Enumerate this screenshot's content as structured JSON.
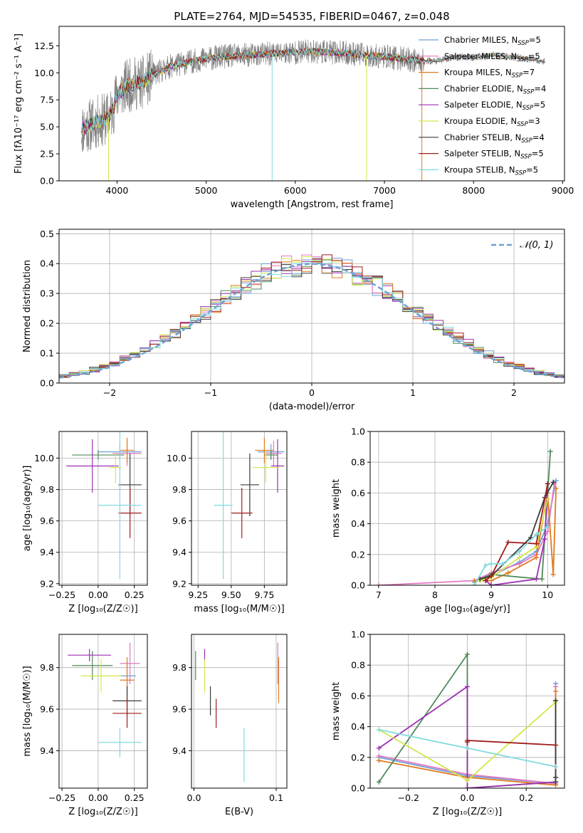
{
  "chart_data": [
    {
      "type": "line",
      "id": "spectrum",
      "title": "PLATE=2764, MJD=54535, FIBERID=0467, z=0.048",
      "xlabel": "wavelength [Angstrom, rest frame]",
      "ylabel": "Flux [fλ10⁻¹⁷ erg cm⁻² s⁻¹ A⁻¹]",
      "xlim": [
        3350,
        9020
      ],
      "ylim": [
        0,
        14.3
      ],
      "xticks": [
        4000,
        5000,
        6000,
        7000,
        8000,
        9000
      ],
      "xticklabels": [
        "4000",
        "5000",
        "6000",
        "7000",
        "8000",
        "9000"
      ],
      "yticks": [
        0,
        2.5,
        5,
        7.5,
        10,
        12.5
      ],
      "yticklabels": [
        "0.0",
        "2.5",
        "5.0",
        "7.5",
        "10.0",
        "12.5"
      ],
      "grid": false,
      "legend_position": "right",
      "data_series": {
        "name": "",
        "color": "#808080"
      },
      "continuum_x": [
        3600,
        3700,
        3800,
        3900,
        3950,
        4000,
        4100,
        4200,
        4300,
        4400,
        4500,
        4600,
        4800,
        5000,
        5200,
        5400,
        5600,
        5800,
        6000,
        6200,
        6400,
        6600,
        6800,
        7000,
        7200,
        7400,
        7600,
        7800,
        8000,
        8200,
        8400,
        8600,
        8800
      ],
      "continuum_y": [
        4.8,
        5.2,
        5.5,
        5.8,
        6.5,
        8.0,
        8.7,
        9.0,
        9.1,
        9.8,
        10.2,
        10.6,
        11.0,
        11.3,
        11.5,
        11.6,
        11.7,
        11.8,
        11.9,
        12.0,
        11.9,
        11.8,
        11.6,
        11.5,
        11.3,
        11.1,
        11.1,
        11.5,
        11.4,
        11.6,
        11.5,
        11.3,
        11.0
      ],
      "legend": [
        {
          "label": "Chabrier MILES, N",
          "sub": "SSP",
          "value": "=5",
          "color": "#6f9fd6"
        },
        {
          "label": "Salpeter MILES, N",
          "sub": "SSP",
          "value": "=5",
          "color": "#e377c2"
        },
        {
          "label": "Kroupa MILES, N",
          "sub": "SSP",
          "value": "=7",
          "color": "#e07b20"
        },
        {
          "label": "Chabrier ELODIE, N",
          "sub": "SSP",
          "value": "=4",
          "color": "#4f8a58"
        },
        {
          "label": "Salpeter ELODIE, N",
          "sub": "SSP",
          "value": "=5",
          "color": "#9c2fb2"
        },
        {
          "label": "Kroupa ELODIE, N",
          "sub": "SSP",
          "value": "=3",
          "color": "#d4e64a"
        },
        {
          "label": "Chabrier STELIB, N",
          "sub": "SSP",
          "value": "=4",
          "color": "#3b3b3b"
        },
        {
          "label": "Salpeter STELIB, N",
          "sub": "SSP",
          "value": "=5",
          "color": "#a01c1c"
        },
        {
          "label": "Kroupa STELIB, N",
          "sub": "SSP",
          "value": "=5",
          "color": "#7fdbe0"
        }
      ],
      "vertical_spikes": [
        {
          "x": 3905,
          "color": "#d4e64a"
        },
        {
          "x": 5740,
          "color": "#7fdbe0"
        },
        {
          "x": 6800,
          "color": "#d4e64a"
        },
        {
          "x": 7420,
          "color": "#e07b20"
        }
      ]
    },
    {
      "type": "histogram",
      "id": "residuals",
      "xlabel": "(data-model)/error",
      "ylabel": "Normed distribution",
      "xlim": [
        -2.5,
        2.5
      ],
      "ylim": [
        0,
        0.515
      ],
      "xticks": [
        -2,
        -1,
        0,
        1,
        2
      ],
      "xticklabels": [
        "−2",
        "−1",
        "0",
        "1",
        "2"
      ],
      "yticks": [
        0,
        0.1,
        0.2,
        0.3,
        0.4,
        0.5
      ],
      "yticklabels": [
        "0.0",
        "0.1",
        "0.2",
        "0.3",
        "0.4",
        "0.5"
      ],
      "grid": true,
      "legend_position": "top-right",
      "legend": [
        {
          "label": "𝒩(0, 1)",
          "color": "#6f9fd6",
          "style": "dashed"
        }
      ],
      "bin_width": 0.1,
      "bin_start": -2.5
    },
    {
      "type": "errorbar",
      "id": "age-vs-Z",
      "xlabel": "Z [log₁₀(Z/Z☉)]",
      "ylabel": "age  [log₁₀(age/yr)]",
      "xlim": [
        -0.27,
        0.34
      ],
      "ylim": [
        9.19,
        10.17
      ],
      "xticks": [
        -0.25,
        0,
        0.25
      ],
      "xticklabels": [
        "−0.25",
        "0.00",
        "0.25"
      ],
      "yticks": [
        9.2,
        9.4,
        9.6,
        9.8,
        10.0
      ],
      "yticklabels": [
        "9.2",
        "9.4",
        "9.6",
        "9.8",
        "10.0"
      ],
      "grid": true,
      "points": [
        {
          "x": 0.15,
          "xerr": 0.15,
          "y": 10.04,
          "yerr": 0.05,
          "color": "#6f9fd6"
        },
        {
          "x": 0.2,
          "xerr": 0.1,
          "y": 10.03,
          "yerr": 0.08,
          "color": "#e377c2"
        },
        {
          "x": 0.2,
          "xerr": 0.05,
          "y": 10.05,
          "yerr": 0.08,
          "color": "#e07b20"
        },
        {
          "x": 0.0,
          "xerr": 0.18,
          "y": 10.02,
          "yerr": 0.03,
          "color": "#4f8a58"
        },
        {
          "x": -0.04,
          "xerr": 0.18,
          "y": 9.95,
          "yerr": 0.17,
          "color": "#9c2fb2"
        },
        {
          "x": 0.12,
          "xerr": 0.04,
          "y": 9.94,
          "yerr": 0.1,
          "color": "#d4e64a"
        },
        {
          "x": 0.22,
          "xerr": 0.08,
          "y": 9.83,
          "yerr": 0.2,
          "color": "#3b3b3b"
        },
        {
          "x": 0.22,
          "xerr": 0.08,
          "y": 9.65,
          "yerr": 0.16,
          "color": "#a01c1c"
        },
        {
          "x": 0.15,
          "xerr": 0.15,
          "y": 9.7,
          "yerr": 0.47,
          "color": "#7fdbe0"
        }
      ]
    },
    {
      "type": "errorbar",
      "id": "age-vs-mass",
      "xlabel": "mass [log₁₀(M/M☉)]",
      "ylabel": "",
      "xlim": [
        9.2,
        9.92
      ],
      "ylim": [
        9.19,
        10.17
      ],
      "xticks": [
        9.25,
        9.5,
        9.75
      ],
      "xticklabels": [
        "9.25",
        "9.50",
        "9.75"
      ],
      "yticks": [
        9.2,
        9.4,
        9.6,
        9.8,
        10.0
      ],
      "yticklabels": [
        "9.2",
        "9.4",
        "9.6",
        "9.8",
        "10.0"
      ],
      "grid": true,
      "points": [
        {
          "x": 9.8,
          "xerr": 0.1,
          "y": 10.04,
          "yerr": 0.05,
          "color": "#6f9fd6"
        },
        {
          "x": 9.82,
          "xerr": 0.06,
          "y": 10.03,
          "yerr": 0.08,
          "color": "#e377c2"
        },
        {
          "x": 9.75,
          "xerr": 0.07,
          "y": 10.05,
          "yerr": 0.08,
          "color": "#e07b20"
        },
        {
          "x": 9.8,
          "xerr": 0.05,
          "y": 10.02,
          "yerr": 0.03,
          "color": "#4f8a58"
        },
        {
          "x": 9.85,
          "xerr": 0.05,
          "y": 9.95,
          "yerr": 0.17,
          "color": "#9c2fb2"
        },
        {
          "x": 9.76,
          "xerr": 0.1,
          "y": 9.94,
          "yerr": 0.1,
          "color": "#d4e64a"
        },
        {
          "x": 9.64,
          "xerr": 0.07,
          "y": 9.83,
          "yerr": 0.2,
          "color": "#3b3b3b"
        },
        {
          "x": 9.58,
          "xerr": 0.08,
          "y": 9.65,
          "yerr": 0.16,
          "color": "#a01c1c"
        },
        {
          "x": 9.44,
          "xerr": 0.07,
          "y": 9.7,
          "yerr": 0.47,
          "color": "#7fdbe0"
        }
      ]
    },
    {
      "type": "line",
      "id": "massweight-vs-age",
      "xlabel": "age  [log₁₀(age/yr)]",
      "ylabel": "mass weight",
      "xlim": [
        6.85,
        10.3
      ],
      "ylim": [
        0,
        1.0
      ],
      "xticks": [
        7,
        8,
        9,
        10
      ],
      "xticklabels": [
        "7",
        "8",
        "9",
        "10"
      ],
      "yticks": [
        0,
        0.2,
        0.4,
        0.6,
        0.8,
        1.0
      ],
      "yticklabels": [
        "0.0",
        "0.2",
        "0.4",
        "0.6",
        "0.8",
        "1.0"
      ],
      "grid": true,
      "series": [
        {
          "color": "#6f9fd6",
          "x": [
            8.7,
            9.0,
            9.5,
            9.8,
            10.0,
            10.15
          ],
          "y": [
            0.02,
            0.06,
            0.15,
            0.22,
            0.4,
            0.68
          ]
        },
        {
          "color": "#e377c2",
          "x": [
            7.0,
            8.7,
            9.0,
            9.5,
            9.8,
            10.0,
            10.12
          ],
          "y": [
            0.0,
            0.03,
            0.08,
            0.14,
            0.2,
            0.35,
            0.66
          ]
        },
        {
          "color": "#e07b20",
          "x": [
            8.7,
            9.0,
            9.3,
            9.8,
            10.0,
            10.1,
            10.15
          ],
          "y": [
            0.03,
            0.03,
            0.08,
            0.18,
            0.6,
            0.07,
            0.63
          ]
        },
        {
          "color": "#4f8a58",
          "x": [
            8.8,
            9.0,
            9.9,
            10.05
          ],
          "y": [
            0.04,
            0.07,
            0.04,
            0.87
          ]
        },
        {
          "color": "#9c2fb2",
          "x": [
            8.9,
            9.0,
            9.8,
            9.95,
            10.0
          ],
          "y": [
            0.03,
            0.0,
            0.04,
            0.3,
            0.66
          ]
        },
        {
          "color": "#d4e64a",
          "x": [
            8.8,
            9.0,
            9.5,
            9.8,
            10.0
          ],
          "y": [
            0.03,
            0.05,
            0.18,
            0.25,
            0.56
          ]
        },
        {
          "color": "#3b3b3b",
          "x": [
            8.8,
            9.0,
            9.7,
            9.95,
            10.1
          ],
          "y": [
            0.04,
            0.06,
            0.31,
            0.57,
            0.67
          ]
        },
        {
          "color": "#a01c1c",
          "x": [
            8.9,
            9.0,
            9.3,
            9.8,
            10.0
          ],
          "y": [
            0.03,
            0.06,
            0.28,
            0.27,
            0.66
          ]
        },
        {
          "color": "#7fdbe0",
          "x": [
            8.7,
            8.9,
            9.0,
            9.2,
            9.5,
            9.8,
            10.0
          ],
          "y": [
            0.0,
            0.13,
            0.14,
            0.14,
            0.22,
            0.33,
            0.38
          ]
        }
      ]
    },
    {
      "type": "errorbar",
      "id": "mass-vs-Z",
      "xlabel": "Z [log₁₀(Z/Z☉)]",
      "ylabel": "mass [log₁₀(M/M☉)]",
      "xlim": [
        -0.27,
        0.34
      ],
      "ylim": [
        9.22,
        9.96
      ],
      "xticks": [
        -0.25,
        0,
        0.25
      ],
      "xticklabels": [
        "−0.25",
        "0.00",
        "0.25"
      ],
      "yticks": [
        9.4,
        9.6,
        9.8
      ],
      "yticklabels": [
        "9.4",
        "9.6",
        "9.8"
      ],
      "grid": true,
      "points": [
        {
          "x": 0.2,
          "xerr": 0.06,
          "y": 9.76,
          "yerr": 0.07,
          "color": "#6f9fd6"
        },
        {
          "x": 0.22,
          "xerr": 0.07,
          "y": 9.82,
          "yerr": 0.1,
          "color": "#e377c2"
        },
        {
          "x": 0.2,
          "xerr": 0.05,
          "y": 9.74,
          "yerr": 0.11,
          "color": "#e07b20"
        },
        {
          "x": -0.04,
          "xerr": 0.14,
          "y": 9.81,
          "yerr": 0.07,
          "color": "#4f8a58"
        },
        {
          "x": -0.06,
          "xerr": 0.15,
          "y": 9.86,
          "yerr": 0.03,
          "color": "#9c2fb2"
        },
        {
          "x": 0.02,
          "xerr": 0.14,
          "y": 9.76,
          "yerr": 0.08,
          "color": "#d4e64a"
        },
        {
          "x": 0.2,
          "xerr": 0.1,
          "y": 9.64,
          "yerr": 0.07,
          "color": "#3b3b3b"
        },
        {
          "x": 0.2,
          "xerr": 0.1,
          "y": 9.58,
          "yerr": 0.07,
          "color": "#a01c1c"
        },
        {
          "x": 0.15,
          "xerr": 0.15,
          "y": 9.44,
          "yerr": 0.07,
          "color": "#7fdbe0"
        }
      ]
    },
    {
      "type": "errorbar",
      "id": "mass-vs-ebv",
      "xlabel": "E(B-V)",
      "ylabel": "",
      "xlim": [
        -0.003,
        0.113
      ],
      "ylim": [
        9.22,
        9.96
      ],
      "xticks": [
        0.0,
        0.1
      ],
      "xticklabels": [
        "0.0",
        "0.1"
      ],
      "yticks": [
        9.4,
        9.6,
        9.8
      ],
      "yticklabels": [
        "9.4",
        "9.6",
        "9.8"
      ],
      "grid": true,
      "points": [
        {
          "x": 0.102,
          "y": 9.82,
          "yerr": 0.1,
          "color": "#e377c2"
        },
        {
          "x": 0.103,
          "y": 9.74,
          "yerr": 0.11,
          "color": "#e07b20"
        },
        {
          "x": 0.002,
          "y": 9.81,
          "yerr": 0.07,
          "color": "#4f8a58"
        },
        {
          "x": 0.013,
          "y": 9.86,
          "yerr": 0.03,
          "color": "#9c2fb2"
        },
        {
          "x": 0.013,
          "y": 9.76,
          "yerr": 0.08,
          "color": "#d4e64a"
        },
        {
          "x": 0.02,
          "y": 9.64,
          "yerr": 0.07,
          "color": "#3b3b3b"
        },
        {
          "x": 0.027,
          "y": 9.58,
          "yerr": 0.07,
          "color": "#a01c1c"
        },
        {
          "x": 0.061,
          "y": 9.38,
          "yerr": 0.13,
          "color": "#7fdbe0"
        }
      ]
    },
    {
      "type": "line",
      "id": "massweight-vs-Z",
      "xlabel": "Z [log₁₀(Z/Z☉)]",
      "ylabel": "mass weight",
      "xlim": [
        -0.33,
        0.33
      ],
      "ylim": [
        0,
        1.0
      ],
      "xticks": [
        -0.2,
        0.0,
        0.2
      ],
      "xticklabels": [
        "−0.2",
        "0.0",
        "0.2"
      ],
      "yticks": [
        0,
        0.2,
        0.4,
        0.6,
        0.8,
        1.0
      ],
      "yticklabels": [
        "0.0",
        "0.2",
        "0.4",
        "0.6",
        "0.8",
        "1.0"
      ],
      "grid": true,
      "series": [
        {
          "color": "#6f9fd6",
          "x": [
            -0.3,
            0.0,
            0.3,
            0.3
          ],
          "y": [
            0.2,
            0.08,
            0.03,
            0.68
          ]
        },
        {
          "color": "#e377c2",
          "x": [
            -0.3,
            0.0,
            0.3,
            0.3
          ],
          "y": [
            0.21,
            0.09,
            0.03,
            0.66
          ]
        },
        {
          "color": "#e07b20",
          "x": [
            -0.3,
            0.0,
            0.3,
            0.3
          ],
          "y": [
            0.18,
            0.07,
            0.02,
            0.63
          ]
        },
        {
          "color": "#4f8a58",
          "x": [
            -0.3,
            0.0,
            0.0,
            0.3
          ],
          "y": [
            0.04,
            0.87,
            0.0,
            0.04
          ]
        },
        {
          "color": "#9c2fb2",
          "x": [
            -0.3,
            0.0,
            0.0,
            0.3
          ],
          "y": [
            0.26,
            0.66,
            0.0,
            0.04
          ]
        },
        {
          "color": "#d4e64a",
          "x": [
            -0.3,
            0.0,
            0.3
          ],
          "y": [
            0.38,
            0.05,
            0.56
          ]
        },
        {
          "color": "#3b3b3b",
          "x": [
            0.3,
            0.3,
            0.3
          ],
          "y": [
            0.57,
            0.07,
            0.04
          ]
        },
        {
          "color": "#a01c1c",
          "x": [
            0.0,
            0.0,
            0.3
          ],
          "y": [
            0.3,
            0.31,
            0.28
          ]
        },
        {
          "color": "#7fdbe0",
          "x": [
            -0.3,
            0.0,
            0.3
          ],
          "y": [
            0.38,
            0.26,
            0.14
          ]
        }
      ]
    }
  ]
}
